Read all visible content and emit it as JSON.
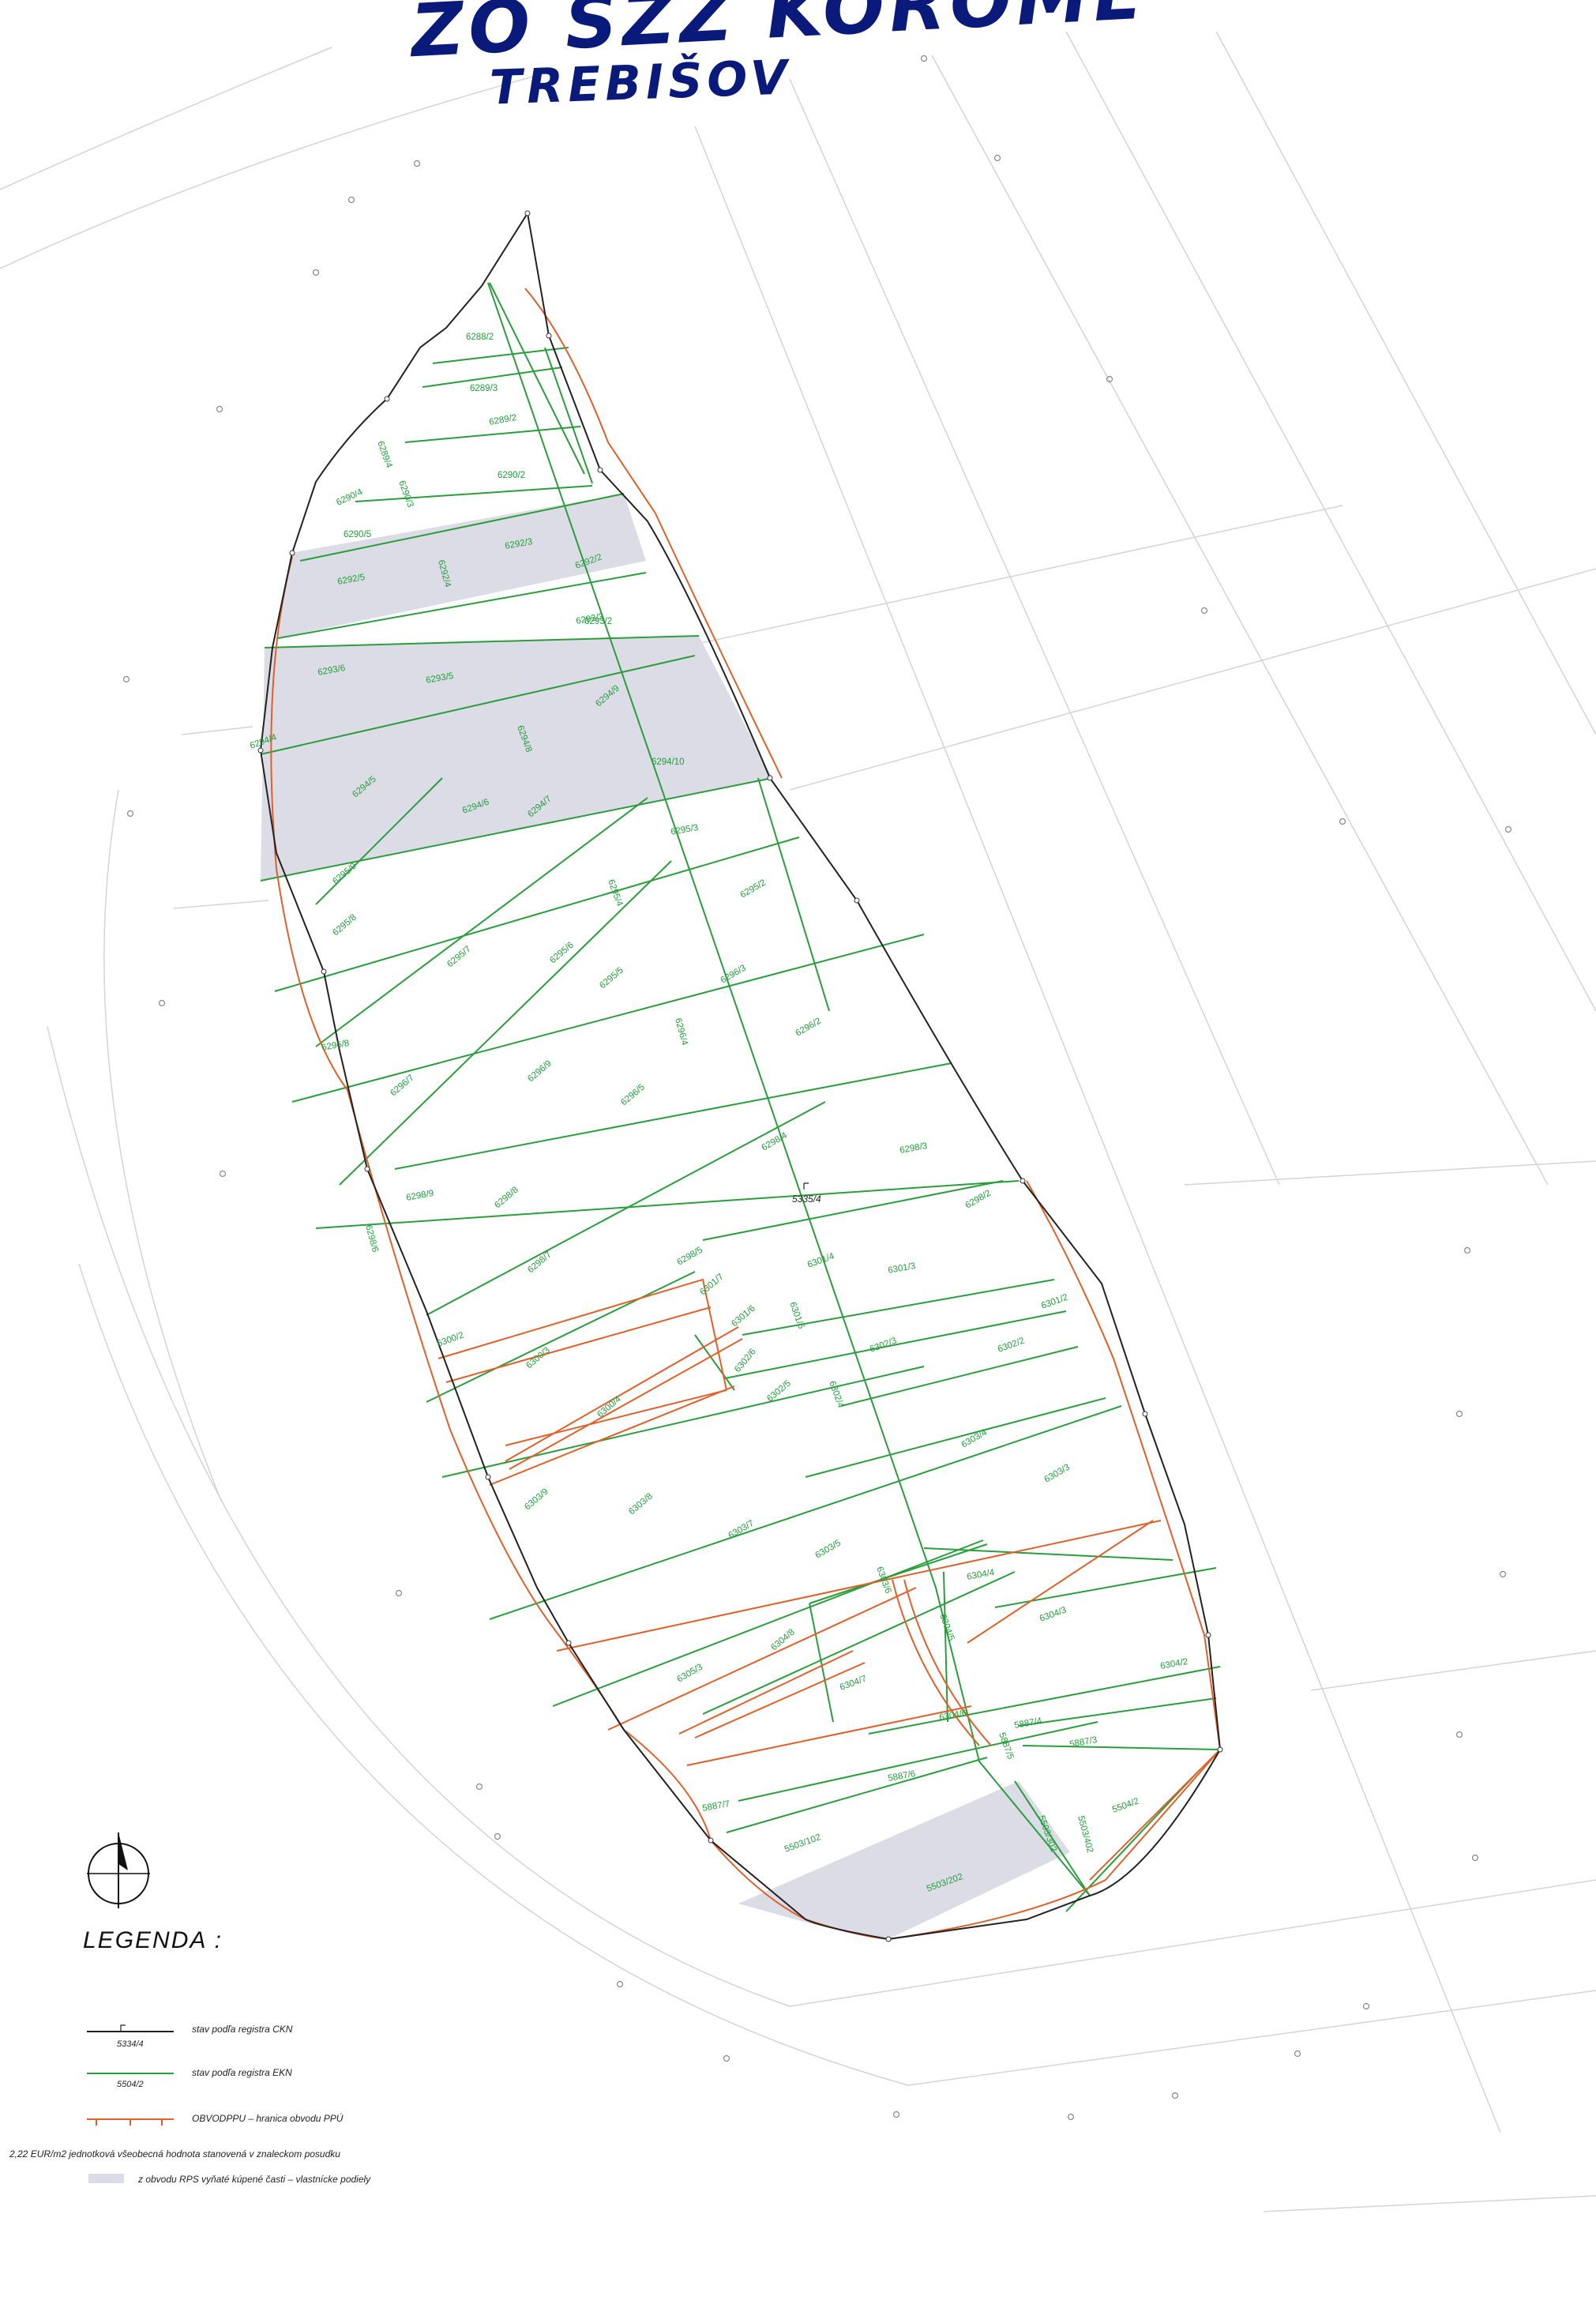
{
  "header": {
    "line1": "ZO SZZ KOROMĽ",
    "line2": "TREBIŠOV"
  },
  "colors": {
    "ckn": "#222222",
    "ekn": "#2a9d3c",
    "obvod": "#e0602a",
    "excluded_fill": "#dcdce6",
    "background_lines": "#d0d0d0"
  },
  "center_label": "5335/4",
  "parcels": [
    "6288/2",
    "6289/3",
    "6289/2",
    "6290/2",
    "6289/4",
    "6290/3",
    "6290/4",
    "6290/5",
    "6292/3",
    "6292/2",
    "6292/5",
    "6292/4",
    "6293/3",
    "6293/2",
    "6293/6",
    "6293/5",
    "6294/9",
    "6294/4",
    "6294/8",
    "6294/10",
    "6294/5",
    "6294/6",
    "6294/7",
    "6295/3",
    "6295/4",
    "6295/2",
    "6295/9",
    "6295/8",
    "6295/7",
    "6295/6",
    "6296/3",
    "6295/5",
    "6296/4",
    "6296/2",
    "6296/8",
    "6296/7",
    "6296/9",
    "6296/5",
    "6298/4",
    "6298/3",
    "6298/9",
    "6298/8",
    "6298/7",
    "6298/5",
    "6298/6",
    "6298/2",
    "6301/4",
    "6301/3",
    "6301/7",
    "6301/5",
    "6301/6",
    "6301/2",
    "6300/2",
    "6300/3",
    "6302/3",
    "6302/2",
    "6302/4",
    "6302/6",
    "6302/5",
    "6300/4",
    "6303/4",
    "6303/3",
    "6303/9",
    "6303/8",
    "6303/7",
    "6303/5",
    "6303/6",
    "6304/4",
    "6304/3",
    "6304/5",
    "6304/8",
    "6305/3",
    "6304/7",
    "6304/2",
    "6304/6",
    "5887/4",
    "5887/3",
    "5887/5",
    "5887/6",
    "5887/7",
    "5504/2",
    "5503/102",
    "5503/202",
    "5503/302",
    "5503/402"
  ],
  "legend": {
    "title": "LEGENDA :",
    "items": [
      {
        "text": "stav podľa registra CKN",
        "sample": "5334/4"
      },
      {
        "text": "stav podľa registra EKN",
        "sample": "5504/2"
      },
      {
        "text": "OBVODPPU – hranica obvodu PPÚ",
        "sample": ""
      }
    ],
    "note": "2,22 EUR/m2 jednotková všeobecná hodnota stanovená v znaleckom posudku",
    "shaded_note": "z obvodu RPS vyňaté kúpené časti – vlastnícke podiely"
  },
  "icons": {
    "compass": "north-arrow-icon"
  }
}
